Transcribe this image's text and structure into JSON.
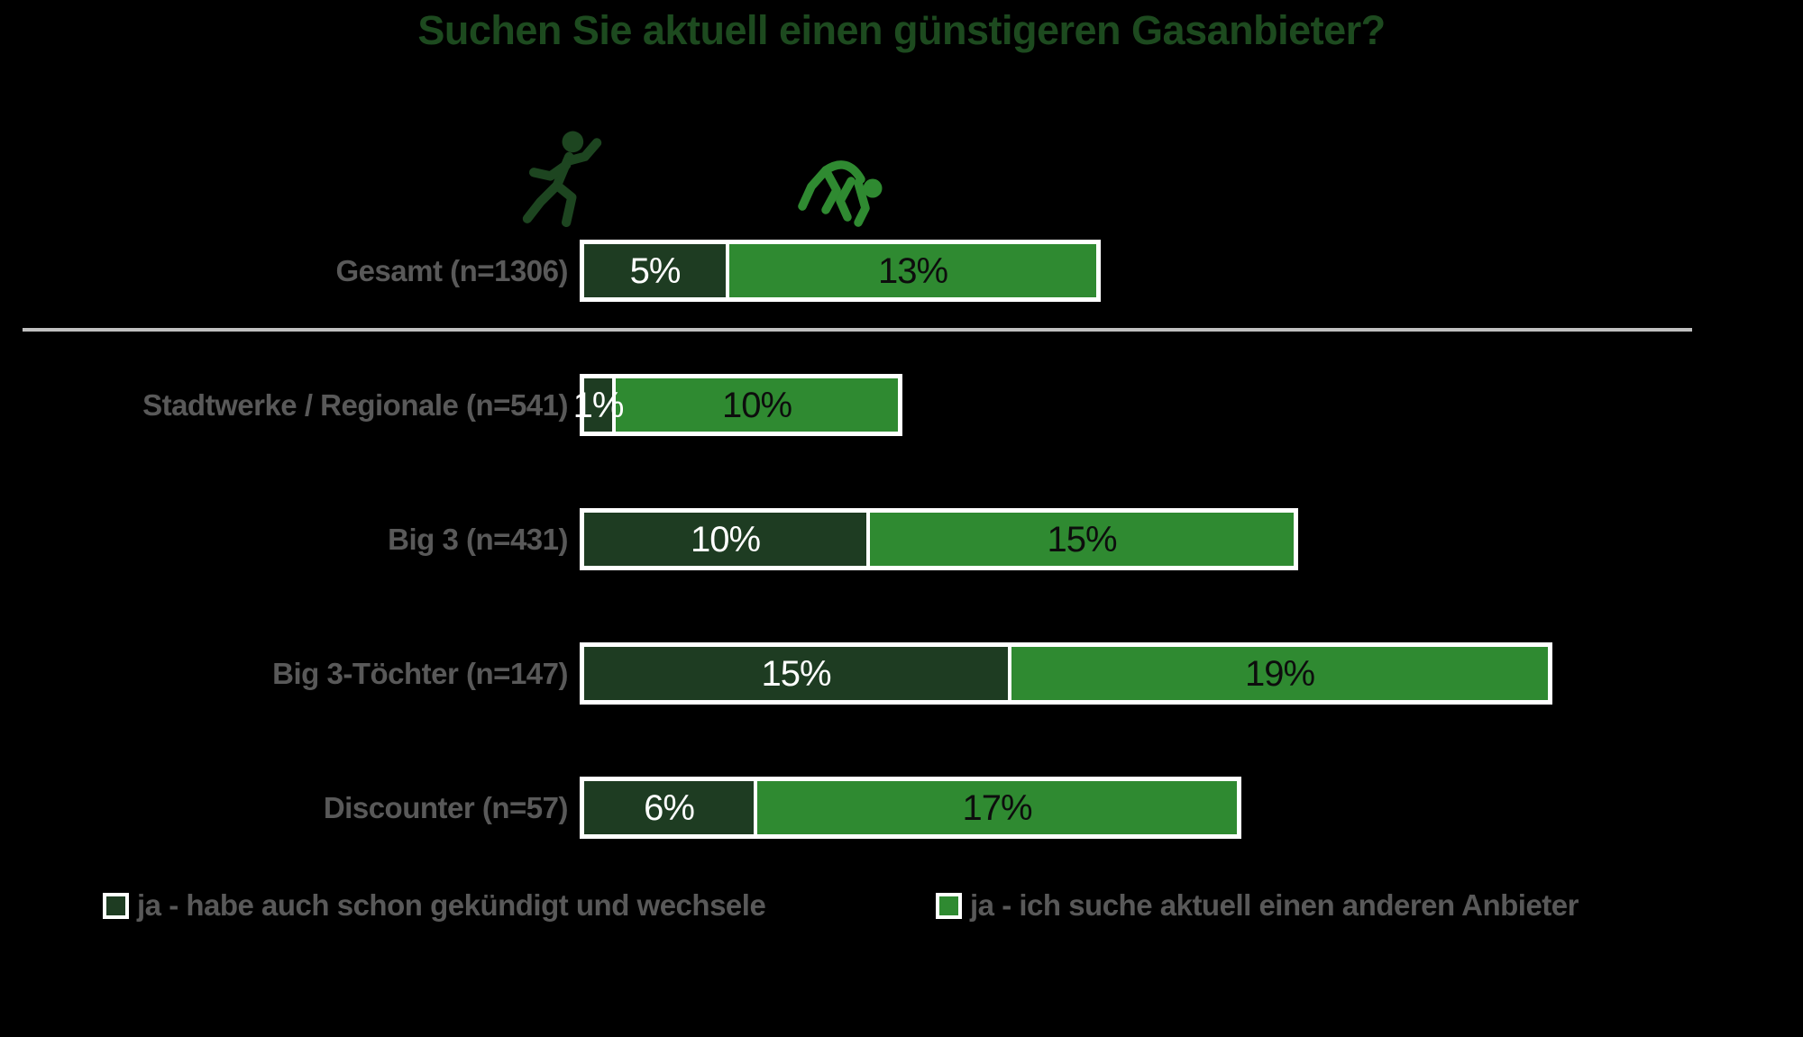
{
  "title": "Suchen Sie aktuell einen günstigeren Gasanbieter?",
  "colors": {
    "background": "#000000",
    "title_text": "#1d4a1f",
    "dark_green": "#1e3c22",
    "light_green": "#2f8a31",
    "label_gray": "#595959",
    "separator_line": "#bfbfbf",
    "bar_border": "#ffffff",
    "value_on_dark": "#ffffff",
    "value_on_light": "#0d0d0d",
    "dark_runner": "#1d4520",
    "light_runner": "#2f8a31"
  },
  "icons": {
    "left": "running-person-icon",
    "right": "stumbling-runner-icon"
  },
  "chart_data": {
    "type": "bar",
    "orientation": "horizontal",
    "stacked": true,
    "title": "Suchen Sie aktuell einen günstigeren Gasanbieter?",
    "categories": [
      "Gesamt (n=1306)",
      "Stadtwerke / Regionale (n=541)",
      "Big 3 (n=431)",
      "Big 3-Töchter (n=147)",
      "Discounter (n=57)"
    ],
    "series": [
      {
        "name": "ja - habe auch schon gekündigt und wechsele",
        "color": "#1e3c22",
        "values": [
          5,
          1,
          10,
          15,
          6
        ]
      },
      {
        "name": "ja - ich suche aktuell einen anderen Anbieter",
        "color": "#2f8a31",
        "values": [
          13,
          10,
          15,
          19,
          17
        ]
      }
    ],
    "value_labels": [
      [
        "5%",
        "13%"
      ],
      [
        "1%",
        "10%"
      ],
      [
        "10%",
        "15%"
      ],
      [
        "15%",
        "19%"
      ],
      [
        "6%",
        "17%"
      ]
    ],
    "value_suffix": "%",
    "xlim": [
      0,
      43
    ],
    "grid": false,
    "legend_position": "bottom",
    "separator_after_category": "Gesamt (n=1306)"
  },
  "legend": {
    "items": [
      {
        "label": "ja - habe auch schon gekündigt und wechsele",
        "color": "#1e3c22"
      },
      {
        "label": "ja - ich suche aktuell einen anderen Anbieter",
        "color": "#2f8a31"
      }
    ]
  }
}
